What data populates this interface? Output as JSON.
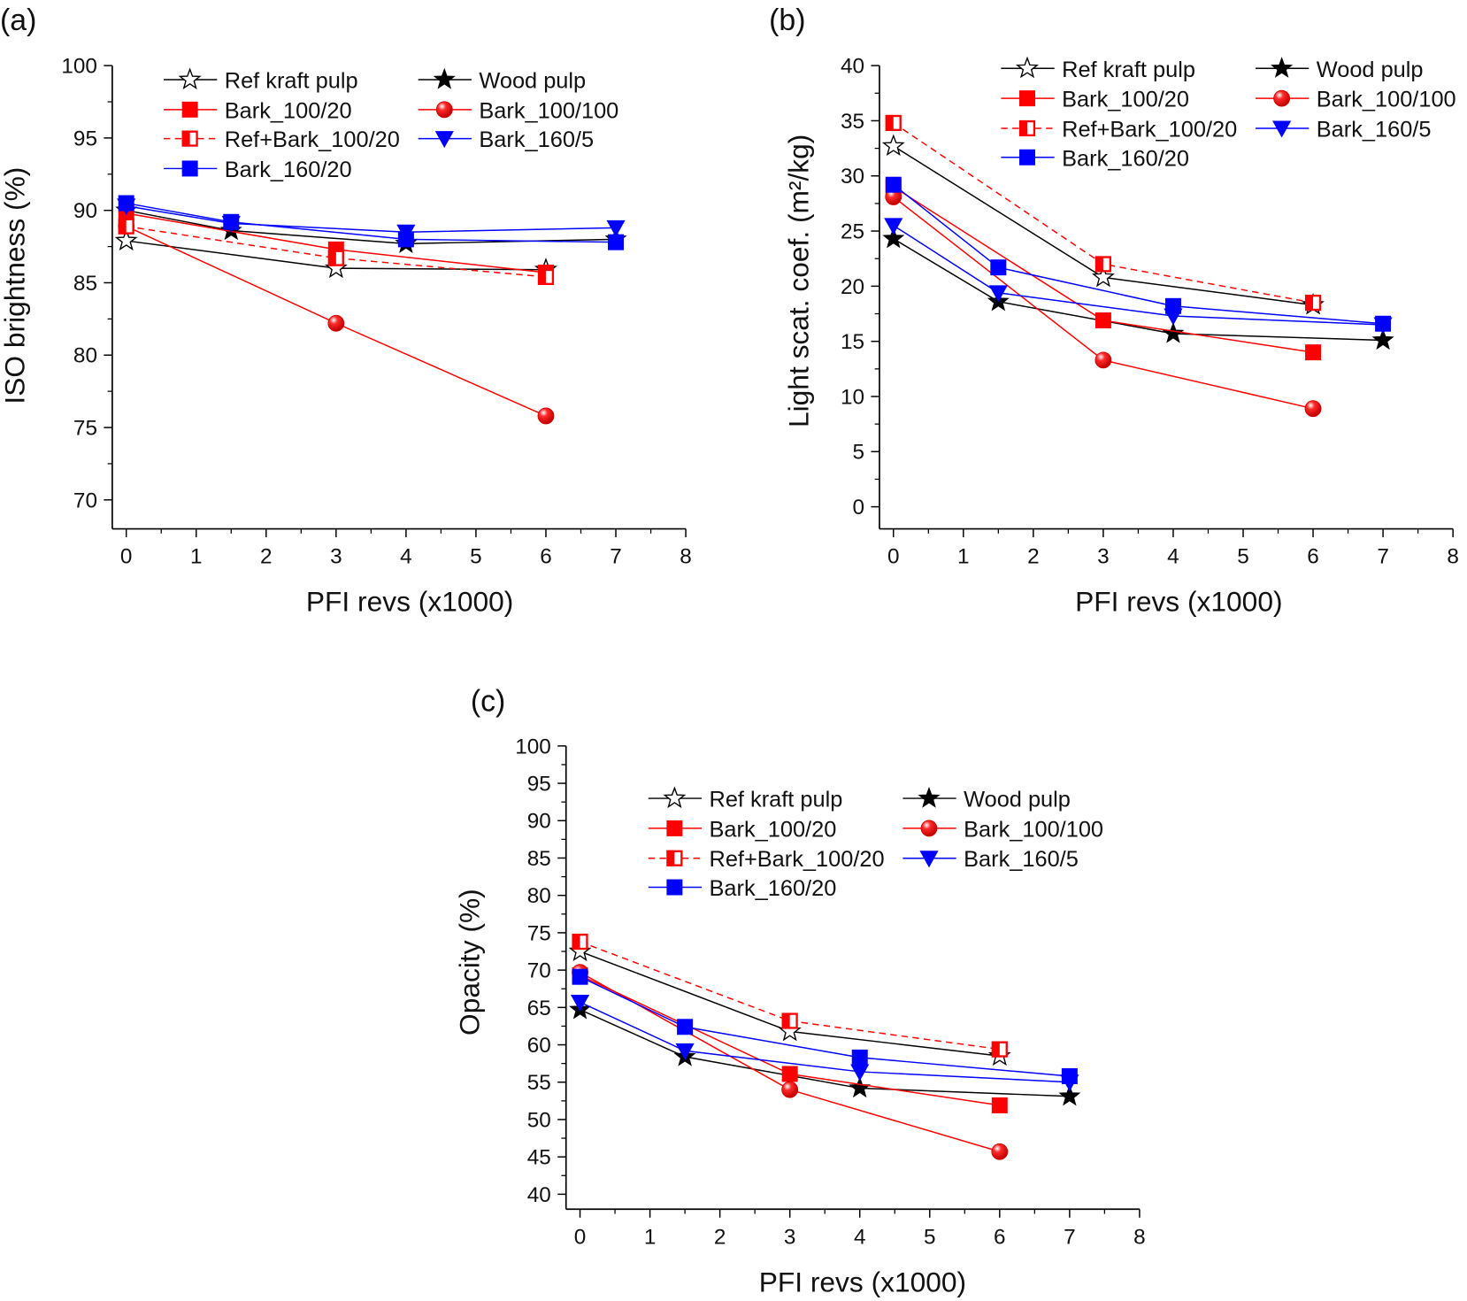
{
  "chart_data": [
    {
      "panel_label": "(a)",
      "type": "line",
      "xlabel": "PFI revs (x1000)",
      "ylabel": "ISO brightness (%)",
      "xlim": [
        -0.2,
        8
      ],
      "ylim": [
        68,
        100
      ],
      "xticks": [
        0,
        1,
        2,
        3,
        4,
        5,
        6,
        7,
        8
      ],
      "yticks": [
        70,
        75,
        80,
        85,
        90,
        95,
        100
      ],
      "legend_placement": "top",
      "series": [
        {
          "name": "Ref kraft pulp",
          "marker": "open-star",
          "color": "#000000",
          "dash": false,
          "x": [
            0,
            3,
            6
          ],
          "y": [
            87.9,
            86.0,
            85.9
          ]
        },
        {
          "name": "Wood pulp",
          "marker": "star",
          "color": "#000000",
          "dash": false,
          "x": [
            0,
            1.5,
            4,
            7
          ],
          "y": [
            90.0,
            88.6,
            87.7,
            88.0
          ]
        },
        {
          "name": "Bark_100/20",
          "marker": "square",
          "color": "#ff0000",
          "dash": false,
          "x": [
            0,
            3,
            6
          ],
          "y": [
            89.8,
            87.3,
            85.7
          ]
        },
        {
          "name": "Bark_100/100",
          "marker": "sphere",
          "color": "#ff0000",
          "dash": false,
          "x": [
            0,
            3,
            6
          ],
          "y": [
            88.9,
            82.2,
            75.8
          ]
        },
        {
          "name": "Ref+Bark_100/20",
          "marker": "half-square",
          "color": "#ff0000",
          "dash": true,
          "x": [
            0,
            3,
            6
          ],
          "y": [
            88.9,
            86.7,
            85.4
          ]
        },
        {
          "name": "Bark_160/5",
          "marker": "down-triangle",
          "color": "#0000ff",
          "dash": false,
          "x": [
            0,
            1.5,
            4,
            7
          ],
          "y": [
            90.3,
            89.1,
            88.5,
            88.8
          ]
        },
        {
          "name": "Bark_160/20",
          "marker": "square",
          "color": "#0000ff",
          "dash": false,
          "x": [
            0,
            1.5,
            4,
            7
          ],
          "y": [
            90.5,
            89.2,
            88.0,
            87.8
          ]
        }
      ]
    },
    {
      "panel_label": "(b)",
      "type": "line",
      "xlabel": "PFI revs (x1000)",
      "ylabel": "Light scat. coef. (m²/kg)",
      "xlim": [
        -0.2,
        8
      ],
      "ylim": [
        -2,
        40
      ],
      "xticks": [
        0,
        1,
        2,
        3,
        4,
        5,
        6,
        7,
        8
      ],
      "yticks": [
        0,
        5,
        10,
        15,
        20,
        25,
        30,
        35,
        40
      ],
      "legend_placement": "top",
      "series": [
        {
          "name": "Ref kraft pulp",
          "marker": "open-star",
          "color": "#000000",
          "dash": false,
          "x": [
            0,
            3,
            6
          ],
          "y": [
            32.7,
            20.8,
            18.3
          ]
        },
        {
          "name": "Wood pulp",
          "marker": "star",
          "color": "#000000",
          "dash": false,
          "x": [
            0,
            1.5,
            4,
            7
          ],
          "y": [
            24.3,
            18.6,
            15.7,
            15.1
          ]
        },
        {
          "name": "Bark_100/20",
          "marker": "square",
          "color": "#ff0000",
          "dash": false,
          "x": [
            0,
            3,
            6
          ],
          "y": [
            29.0,
            16.9,
            14.0
          ]
        },
        {
          "name": "Bark_100/100",
          "marker": "sphere",
          "color": "#ff0000",
          "dash": false,
          "x": [
            0,
            3,
            6
          ],
          "y": [
            28.1,
            13.3,
            8.9
          ]
        },
        {
          "name": "Ref+Bark_100/20",
          "marker": "half-square",
          "color": "#ff0000",
          "dash": true,
          "x": [
            0,
            3,
            6
          ],
          "y": [
            34.8,
            22.0,
            18.5
          ]
        },
        {
          "name": "Bark_160/5",
          "marker": "down-triangle",
          "color": "#0000ff",
          "dash": false,
          "x": [
            0,
            1.5,
            4,
            7
          ],
          "y": [
            25.5,
            19.4,
            17.3,
            16.5
          ]
        },
        {
          "name": "Bark_160/20",
          "marker": "square",
          "color": "#0000ff",
          "dash": false,
          "x": [
            0,
            1.5,
            4,
            7
          ],
          "y": [
            29.2,
            21.7,
            18.2,
            16.6
          ]
        }
      ]
    },
    {
      "panel_label": "(c)",
      "type": "line",
      "xlabel": "PFI revs (x1000)",
      "ylabel": "Opacity (%)",
      "xlim": [
        -0.2,
        8
      ],
      "ylim": [
        38,
        100
      ],
      "xticks": [
        0,
        1,
        2,
        3,
        4,
        5,
        6,
        7,
        8
      ],
      "yticks": [
        40,
        45,
        50,
        55,
        60,
        65,
        70,
        75,
        80,
        85,
        90,
        95,
        100
      ],
      "legend_placement": "top",
      "series": [
        {
          "name": "Ref kraft pulp",
          "marker": "open-star",
          "color": "#000000",
          "dash": false,
          "x": [
            0,
            3,
            6
          ],
          "y": [
            72.5,
            61.8,
            58.5
          ]
        },
        {
          "name": "Wood pulp",
          "marker": "star",
          "color": "#000000",
          "dash": false,
          "x": [
            0,
            1.5,
            4,
            7
          ],
          "y": [
            64.7,
            58.4,
            54.2,
            53.1
          ]
        },
        {
          "name": "Bark_100/20",
          "marker": "square",
          "color": "#ff0000",
          "dash": false,
          "x": [
            0,
            3,
            6
          ],
          "y": [
            69.3,
            56.1,
            51.9
          ]
        },
        {
          "name": "Bark_100/100",
          "marker": "sphere",
          "color": "#ff0000",
          "dash": false,
          "x": [
            0,
            3,
            6
          ],
          "y": [
            69.7,
            54.0,
            45.7
          ]
        },
        {
          "name": "Ref+Bark_100/20",
          "marker": "half-square",
          "color": "#ff0000",
          "dash": true,
          "x": [
            0,
            3,
            6
          ],
          "y": [
            73.8,
            63.2,
            59.4
          ]
        },
        {
          "name": "Bark_160/5",
          "marker": "down-triangle",
          "color": "#0000ff",
          "dash": false,
          "x": [
            0,
            1.5,
            4,
            7
          ],
          "y": [
            65.7,
            59.2,
            56.4,
            55.0
          ]
        },
        {
          "name": "Bark_160/20",
          "marker": "square",
          "color": "#0000ff",
          "dash": false,
          "x": [
            0,
            1.5,
            4,
            7
          ],
          "y": [
            69.1,
            62.4,
            58.3,
            55.8
          ]
        }
      ]
    }
  ]
}
